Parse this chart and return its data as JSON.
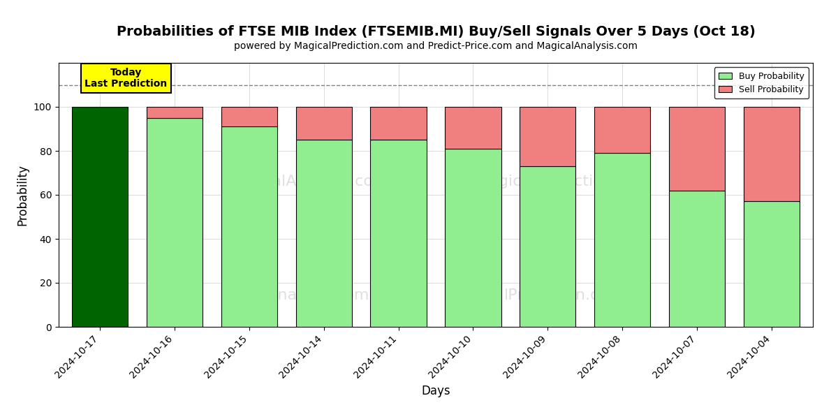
{
  "title": "Probabilities of FTSE MIB Index (FTSEMIB.MI) Buy/Sell Signals Over 5 Days (Oct 18)",
  "subtitle": "powered by MagicalPrediction.com and Predict-Price.com and MagicalAnalysis.com",
  "xlabel": "Days",
  "ylabel": "Probability",
  "dates": [
    "2024-10-17",
    "2024-10-16",
    "2024-10-15",
    "2024-10-14",
    "2024-10-11",
    "2024-10-10",
    "2024-10-09",
    "2024-10-08",
    "2024-10-07",
    "2024-10-04"
  ],
  "buy_values": [
    100,
    95,
    91,
    85,
    85,
    81,
    73,
    79,
    62,
    57
  ],
  "sell_values": [
    0,
    5,
    9,
    15,
    15,
    19,
    27,
    21,
    38,
    43
  ],
  "today_bar_color": "#006400",
  "buy_color": "#90EE90",
  "sell_color": "#F08080",
  "today_annotation_bg": "#FFFF00",
  "today_annotation_text": "Today\nLast Prediction",
  "legend_buy_label": "Buy Probability",
  "legend_sell_label": "Sell Probability",
  "ylim": [
    0,
    120
  ],
  "yticks": [
    0,
    20,
    40,
    60,
    80,
    100
  ],
  "dashed_line_y": 110,
  "title_fontsize": 14,
  "subtitle_fontsize": 10,
  "axis_label_fontsize": 12,
  "tick_fontsize": 10,
  "background_color": "#ffffff",
  "grid_color": "#cccccc",
  "bar_width": 0.75
}
